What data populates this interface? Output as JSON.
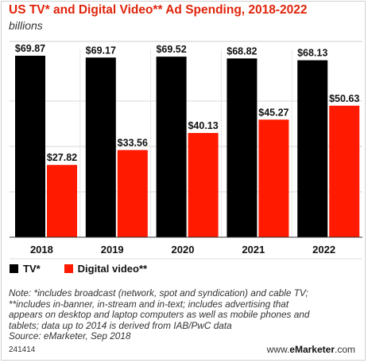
{
  "title": "US TV* and Digital Video** Ad Spending, 2018-2022",
  "subtitle": "billions",
  "note_lines": [
    "Note: *includes broadcast (network, spot and syndication) and cable TV;",
    "**includes in-banner, in-stream and in-text; includes advertising that",
    "appears on desktop and laptop computers as well as mobile phones and",
    "tablets; data up to 2014 is derived from IAB/PwC data",
    "Source: eMarketer, Sep 2018"
  ],
  "footer": {
    "id": "241414",
    "brand_prefix": "www.",
    "brand_bold": "eMarketer",
    "brand_suffix": ".com"
  },
  "colors": {
    "tv": "#000000",
    "digital": "#ff1a00",
    "title": "#e0240b",
    "gridline": "#d9d9d9"
  },
  "chart_data": {
    "type": "bar",
    "title": "US TV* and Digital Video** Ad Spending, 2018-2022",
    "subtitle": "billions",
    "categories": [
      "2018",
      "2019",
      "2020",
      "2021",
      "2022"
    ],
    "series": [
      {
        "name": "TV*",
        "values": [
          69.87,
          69.17,
          69.52,
          68.82,
          68.13
        ],
        "labels": [
          "$69.87",
          "$69.17",
          "$69.52",
          "$68.82",
          "$68.13"
        ],
        "color": "#000000"
      },
      {
        "name": "Digital video**",
        "values": [
          27.82,
          33.56,
          40.13,
          45.27,
          50.63
        ],
        "labels": [
          "$27.82",
          "$33.56",
          "$40.13",
          "$45.27",
          "$50.63"
        ],
        "color": "#ff1a00"
      }
    ],
    "ylim": [
      0,
      69.87
    ],
    "grid": true,
    "legend": "bottom-left"
  }
}
